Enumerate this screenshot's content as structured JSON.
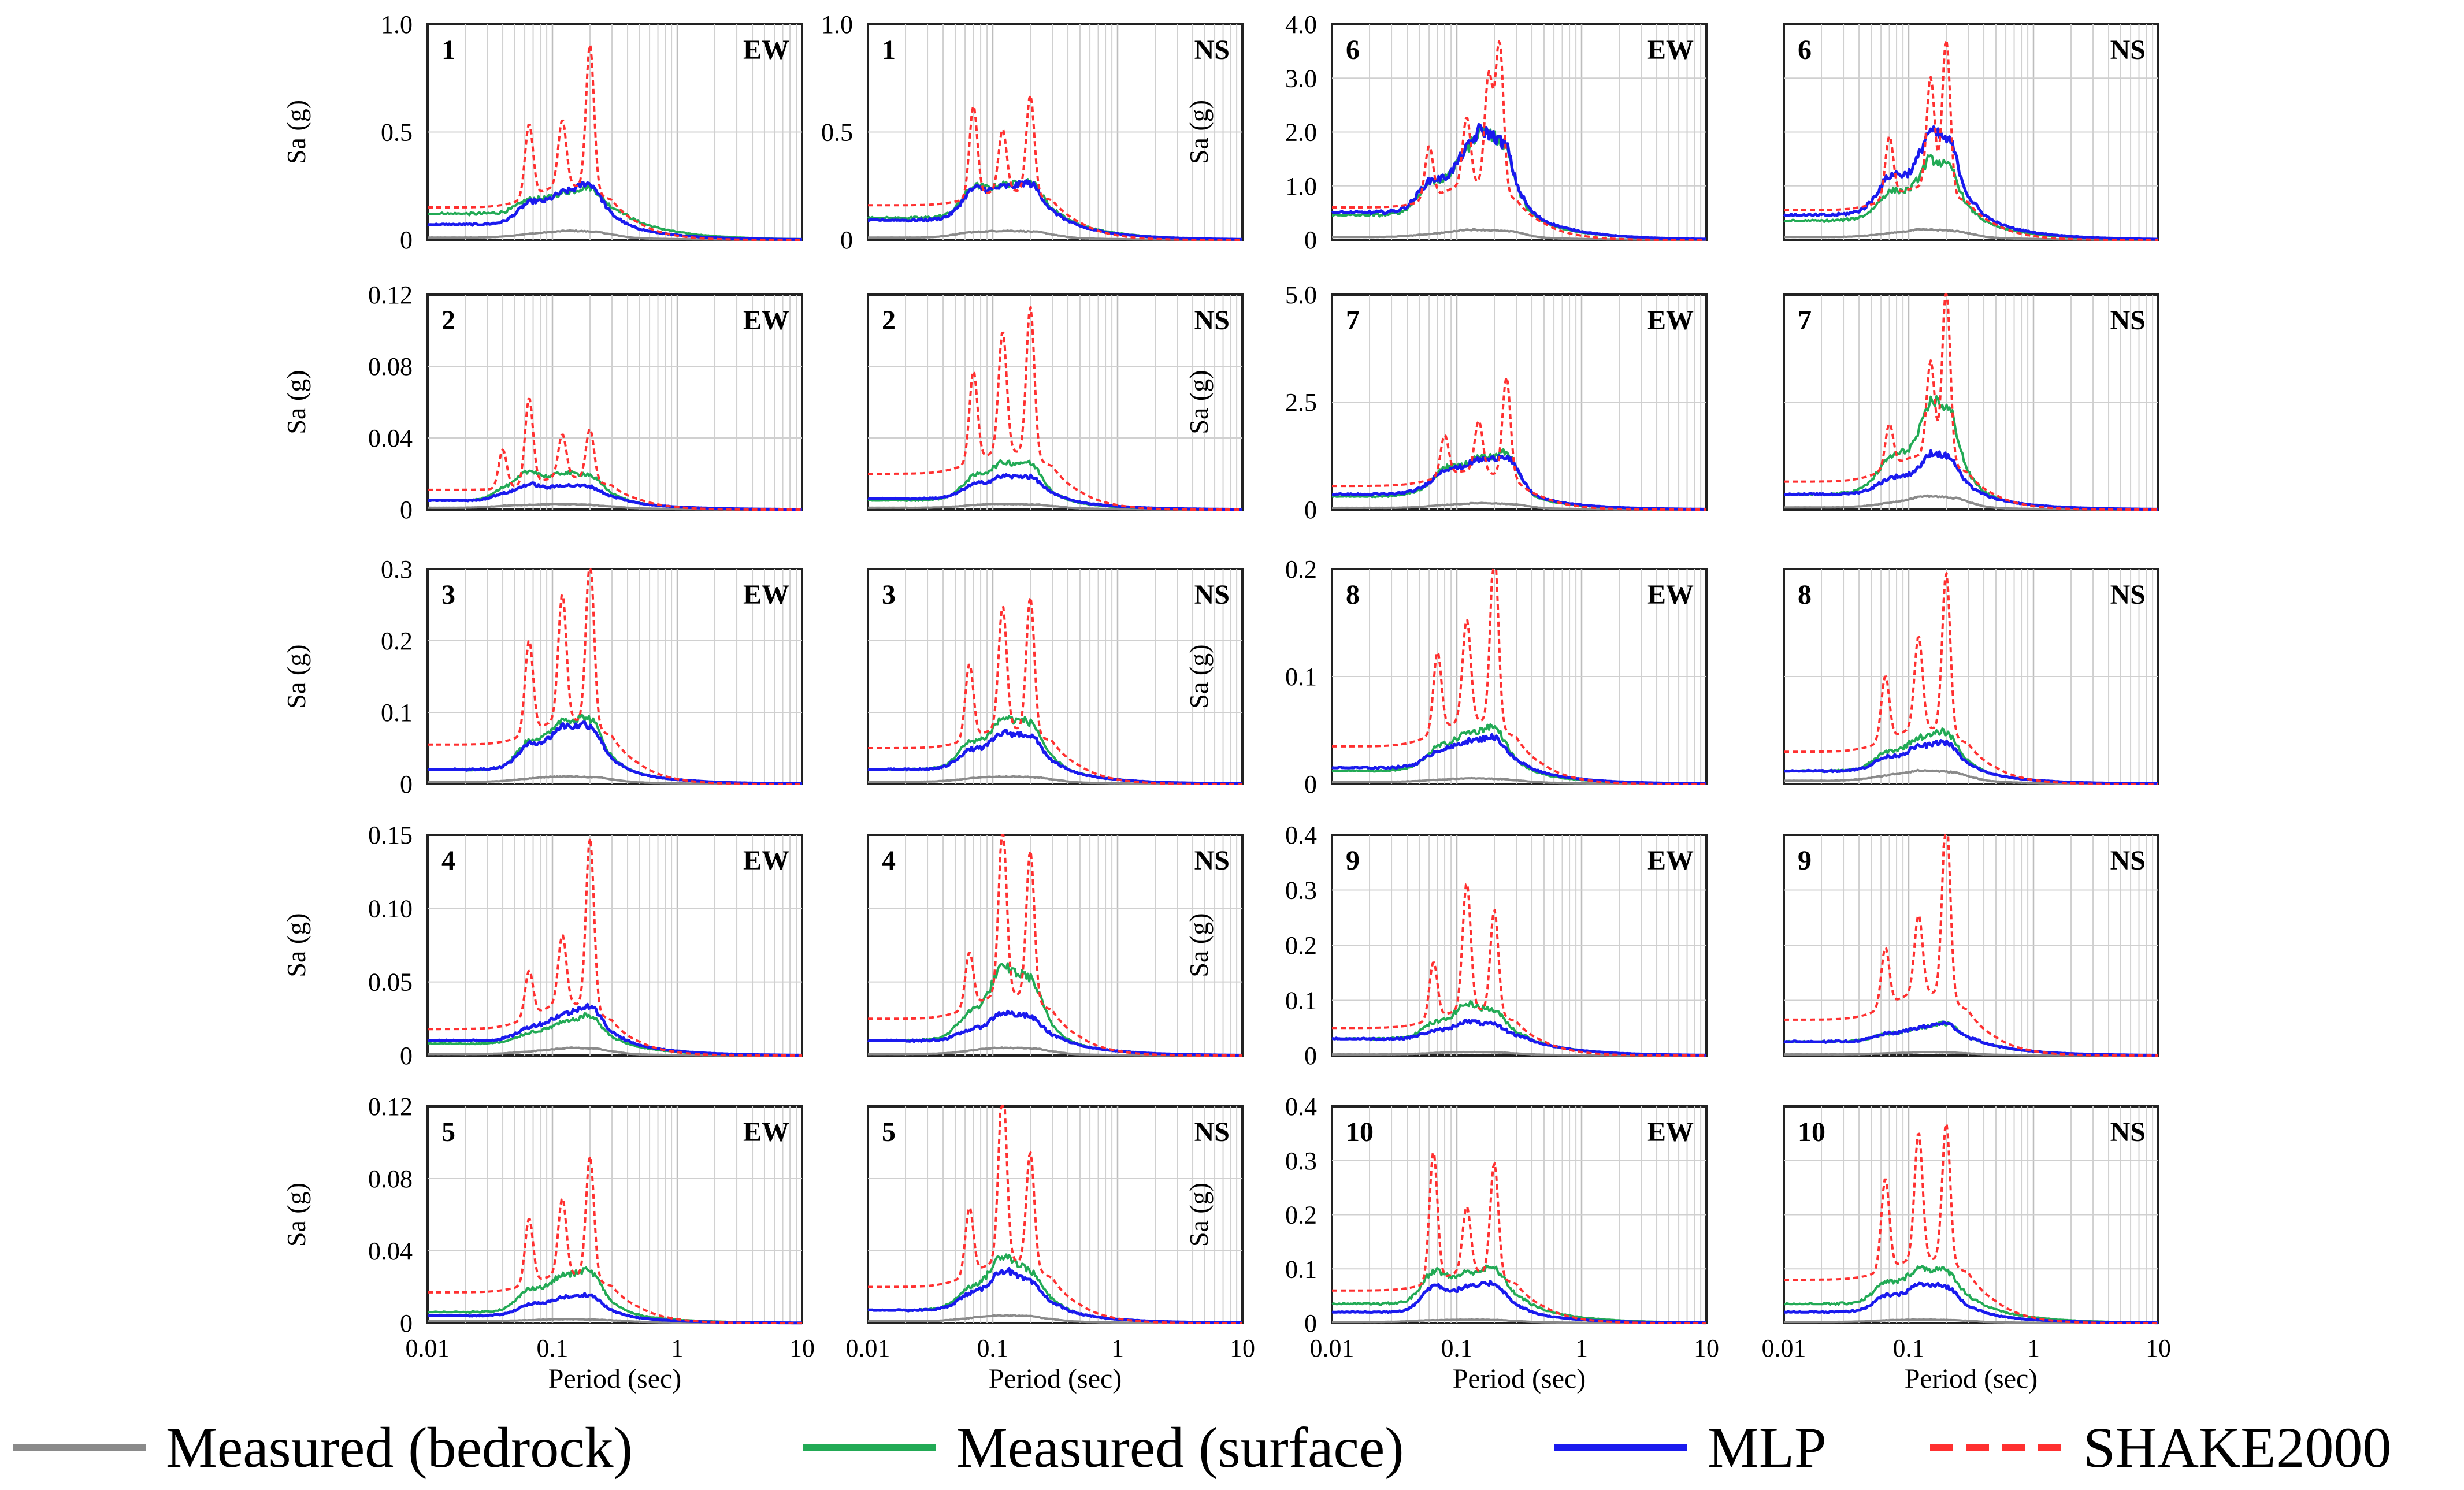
{
  "chart_data": {
    "type": "line",
    "xscale": "log",
    "xlim": [
      0.01,
      10
    ],
    "x_ticks": [
      "0.01",
      "0.1",
      "1",
      "10"
    ],
    "xlabel": "Period (sec)",
    "ylabel": "Sa (g)",
    "colors": {
      "bedrock": "#8a8a8a",
      "surface": "#22aa55",
      "mlp": "#1a1aee",
      "shake": "#ff3030"
    },
    "legend": {
      "placement": "bottom",
      "entries": [
        {
          "key": "bedrock",
          "label": "Measured (bedrock)"
        },
        {
          "key": "surface",
          "label": "Measured (surface)"
        },
        {
          "key": "mlp",
          "label": "MLP"
        },
        {
          "key": "shake",
          "label": "SHAKE2000"
        }
      ]
    },
    "panels": [
      {
        "id": "1",
        "dir": "EW",
        "ylim": [
          0,
          1.0
        ],
        "yticks": [
          "0",
          "0.5",
          "1.0"
        ],
        "peaks": {
          "bedrock": 0.04,
          "surface": 0.25,
          "mlp": 0.27,
          "shake": 0.83
        },
        "base": {
          "bedrock": 0.01,
          "surface": 0.12,
          "mlp": 0.07,
          "shake": 0.15
        },
        "modes": [
          [
            0.065,
            0.5
          ],
          [
            0.12,
            0.45
          ],
          [
            0.2,
            1.0
          ]
        ]
      },
      {
        "id": "1",
        "dir": "NS",
        "ylim": [
          0,
          1.0
        ],
        "yticks": [
          "0",
          "0.5",
          "1.0"
        ],
        "peaks": {
          "bedrock": 0.04,
          "surface": 0.28,
          "mlp": 0.27,
          "shake": 0.62
        },
        "base": {
          "bedrock": 0.01,
          "surface": 0.1,
          "mlp": 0.09,
          "shake": 0.16
        },
        "modes": [
          [
            0.07,
            0.92
          ],
          [
            0.12,
            0.62
          ],
          [
            0.2,
            1.0
          ]
        ]
      },
      {
        "id": "6",
        "dir": "EW",
        "ylim": [
          0,
          4.0
        ],
        "yticks": [
          "0",
          "1.0",
          "2.0",
          "3.0",
          "4.0"
        ],
        "peaks": {
          "bedrock": 0.18,
          "surface": 2.0,
          "mlp": 2.0,
          "shake": 3.4
        },
        "base": {
          "bedrock": 0.05,
          "surface": 0.45,
          "mlp": 0.5,
          "shake": 0.6
        },
        "modes": [
          [
            0.06,
            0.35
          ],
          [
            0.12,
            0.45
          ],
          [
            0.18,
            0.75
          ],
          [
            0.22,
            1.0
          ]
        ]
      },
      {
        "id": "6",
        "dir": "NS",
        "ylim": [
          0,
          4.0
        ],
        "yticks": [],
        "peaks": {
          "bedrock": 0.18,
          "surface": 1.45,
          "mlp": 1.95,
          "shake": 3.4
        },
        "base": {
          "bedrock": 0.05,
          "surface": 0.35,
          "mlp": 0.45,
          "shake": 0.55
        },
        "modes": [
          [
            0.07,
            0.4
          ],
          [
            0.15,
            0.72
          ],
          [
            0.2,
            1.0
          ]
        ]
      },
      {
        "id": "2",
        "dir": "EW",
        "ylim": [
          0,
          0.12
        ],
        "yticks": [
          "0",
          "0.04",
          "0.08",
          "0.12"
        ],
        "peaks": {
          "bedrock": 0.003,
          "surface": 0.025,
          "mlp": 0.016,
          "shake": 0.059
        },
        "base": {
          "bedrock": 0.001,
          "surface": 0.005,
          "mlp": 0.005,
          "shake": 0.011
        },
        "modes": [
          [
            0.04,
            0.45
          ],
          [
            0.065,
            1.0
          ],
          [
            0.12,
            0.5
          ],
          [
            0.2,
            0.6
          ]
        ]
      },
      {
        "id": "2",
        "dir": "NS",
        "ylim": [
          0,
          0.12
        ],
        "yticks": [],
        "peaks": {
          "bedrock": 0.003,
          "surface": 0.027,
          "mlp": 0.019,
          "shake": 0.104
        },
        "base": {
          "bedrock": 0.001,
          "surface": 0.005,
          "mlp": 0.006,
          "shake": 0.02
        },
        "modes": [
          [
            0.07,
            0.6
          ],
          [
            0.12,
            0.8
          ],
          [
            0.2,
            1.0
          ]
        ]
      },
      {
        "id": "7",
        "dir": "EW",
        "ylim": [
          0,
          5.0
        ],
        "yticks": [
          "0",
          "2.5",
          "5.0"
        ],
        "peaks": {
          "bedrock": 0.15,
          "surface": 1.5,
          "mlp": 1.4,
          "shake": 2.9
        },
        "base": {
          "bedrock": 0.04,
          "surface": 0.3,
          "mlp": 0.35,
          "shake": 0.55
        },
        "modes": [
          [
            0.08,
            0.4
          ],
          [
            0.15,
            0.5
          ],
          [
            0.25,
            1.0
          ]
        ]
      },
      {
        "id": "7",
        "dir": "NS",
        "ylim": [
          0,
          5.0
        ],
        "yticks": [],
        "peaks": {
          "bedrock": 0.3,
          "surface": 2.5,
          "mlp": 1.3,
          "shake": 4.7
        },
        "base": {
          "bedrock": 0.05,
          "surface": 0.35,
          "mlp": 0.35,
          "shake": 0.65
        },
        "modes": [
          [
            0.07,
            0.25
          ],
          [
            0.15,
            0.55
          ],
          [
            0.2,
            1.0
          ]
        ]
      },
      {
        "id": "3",
        "dir": "EW",
        "ylim": [
          0,
          0.3
        ],
        "yticks": [
          "0",
          "0.1",
          "0.2",
          "0.3"
        ],
        "peaks": {
          "bedrock": 0.01,
          "surface": 0.095,
          "mlp": 0.085,
          "shake": 0.29
        },
        "base": {
          "bedrock": 0.003,
          "surface": 0.02,
          "mlp": 0.02,
          "shake": 0.055
        },
        "modes": [
          [
            0.065,
            0.55
          ],
          [
            0.12,
            0.75
          ],
          [
            0.2,
            1.0
          ]
        ]
      },
      {
        "id": "3",
        "dir": "NS",
        "ylim": [
          0,
          0.3
        ],
        "yticks": [],
        "peaks": {
          "bedrock": 0.01,
          "surface": 0.09,
          "mlp": 0.07,
          "shake": 0.24
        },
        "base": {
          "bedrock": 0.003,
          "surface": 0.02,
          "mlp": 0.02,
          "shake": 0.05
        },
        "modes": [
          [
            0.065,
            0.55
          ],
          [
            0.12,
            0.9
          ],
          [
            0.2,
            1.0
          ]
        ]
      },
      {
        "id": "8",
        "dir": "EW",
        "ylim": [
          0,
          0.2
        ],
        "yticks": [
          "0",
          "0.1",
          "0.2"
        ],
        "peaks": {
          "bedrock": 0.005,
          "surface": 0.055,
          "mlp": 0.045,
          "shake": 0.2
        },
        "base": {
          "bedrock": 0.002,
          "surface": 0.012,
          "mlp": 0.015,
          "shake": 0.035
        },
        "modes": [
          [
            0.07,
            0.45
          ],
          [
            0.12,
            0.57
          ],
          [
            0.2,
            1.0
          ]
        ]
      },
      {
        "id": "8",
        "dir": "NS",
        "ylim": [
          0,
          0.2
        ],
        "yticks": [],
        "peaks": {
          "bedrock": 0.012,
          "surface": 0.05,
          "mlp": 0.04,
          "shake": 0.18
        },
        "base": {
          "bedrock": 0.003,
          "surface": 0.012,
          "mlp": 0.012,
          "shake": 0.03
        },
        "modes": [
          [
            0.065,
            0.4
          ],
          [
            0.12,
            0.57
          ],
          [
            0.2,
            1.0
          ]
        ]
      },
      {
        "id": "4",
        "dir": "EW",
        "ylim": [
          0,
          0.15
        ],
        "yticks": [
          "0",
          "0.05",
          "0.10",
          "0.15"
        ],
        "peaks": {
          "bedrock": 0.005,
          "surface": 0.028,
          "mlp": 0.035,
          "shake": 0.135
        },
        "base": {
          "bedrock": 0.001,
          "surface": 0.008,
          "mlp": 0.01,
          "shake": 0.018
        },
        "modes": [
          [
            0.065,
            0.27
          ],
          [
            0.12,
            0.4
          ],
          [
            0.2,
            1.0
          ]
        ]
      },
      {
        "id": "4",
        "dir": "NS",
        "ylim": [
          0,
          0.15
        ],
        "yticks": [],
        "peaks": {
          "bedrock": 0.005,
          "surface": 0.057,
          "mlp": 0.028,
          "shake": 0.138
        },
        "base": {
          "bedrock": 0.001,
          "surface": 0.01,
          "mlp": 0.01,
          "shake": 0.025
        },
        "modes": [
          [
            0.065,
            0.33
          ],
          [
            0.12,
            1.0
          ],
          [
            0.2,
            0.9
          ]
        ]
      },
      {
        "id": "9",
        "dir": "EW",
        "ylim": [
          0,
          0.4
        ],
        "yticks": [
          "0",
          "0.1",
          "0.2",
          "0.3",
          "0.4"
        ],
        "peaks": {
          "bedrock": 0.006,
          "surface": 0.09,
          "mlp": 0.06,
          "shake": 0.28
        },
        "base": {
          "bedrock": 0.002,
          "surface": 0.03,
          "mlp": 0.03,
          "shake": 0.05
        },
        "modes": [
          [
            0.065,
            0.45
          ],
          [
            0.12,
            1.0
          ],
          [
            0.2,
            0.82
          ]
        ]
      },
      {
        "id": "9",
        "dir": "NS",
        "ylim": [
          0,
          0.4
        ],
        "yticks": [],
        "peaks": {
          "bedrock": 0.006,
          "surface": 0.06,
          "mlp": 0.06,
          "shake": 0.4
        },
        "base": {
          "bedrock": 0.002,
          "surface": 0.025,
          "mlp": 0.025,
          "shake": 0.065
        },
        "modes": [
          [
            0.065,
            0.32
          ],
          [
            0.12,
            0.42
          ],
          [
            0.2,
            1.0
          ]
        ]
      },
      {
        "id": "5",
        "dir": "EW",
        "ylim": [
          0,
          0.12
        ],
        "yticks": [
          "0",
          "0.04",
          "0.08",
          "0.12"
        ],
        "peaks": {
          "bedrock": 0.002,
          "surface": 0.03,
          "mlp": 0.016,
          "shake": 0.085
        },
        "base": {
          "bedrock": 0.001,
          "surface": 0.006,
          "mlp": 0.004,
          "shake": 0.017
        },
        "modes": [
          [
            0.065,
            0.53
          ],
          [
            0.12,
            0.62
          ],
          [
            0.2,
            1.0
          ]
        ]
      },
      {
        "id": "5",
        "dir": "NS",
        "ylim": [
          0,
          0.12
        ],
        "yticks": [],
        "peaks": {
          "bedrock": 0.004,
          "surface": 0.036,
          "mlp": 0.028,
          "shake": 0.118
        },
        "base": {
          "bedrock": 0.001,
          "surface": 0.007,
          "mlp": 0.007,
          "shake": 0.02
        },
        "modes": [
          [
            0.065,
            0.38
          ],
          [
            0.12,
            1.0
          ],
          [
            0.2,
            0.65
          ]
        ]
      },
      {
        "id": "10",
        "dir": "EW",
        "ylim": [
          0,
          0.4
        ],
        "yticks": [
          "0",
          "0.1",
          "0.2",
          "0.3",
          "0.4"
        ],
        "peaks": {
          "bedrock": 0.006,
          "surface": 0.11,
          "mlp": 0.08,
          "shake": 0.3
        },
        "base": {
          "bedrock": 0.002,
          "surface": 0.035,
          "mlp": 0.02,
          "shake": 0.06
        },
        "modes": [
          [
            0.065,
            1.0
          ],
          [
            0.12,
            0.5
          ],
          [
            0.2,
            0.87
          ]
        ]
      },
      {
        "id": "10",
        "dir": "NS",
        "ylim": [
          0,
          0.4
        ],
        "yticks": [],
        "peaks": {
          "bedrock": 0.006,
          "surface": 0.1,
          "mlp": 0.07,
          "shake": 0.34
        },
        "base": {
          "bedrock": 0.002,
          "surface": 0.035,
          "mlp": 0.02,
          "shake": 0.08
        },
        "modes": [
          [
            0.065,
            0.65
          ],
          [
            0.12,
            0.9
          ],
          [
            0.2,
            1.0
          ]
        ]
      }
    ]
  }
}
